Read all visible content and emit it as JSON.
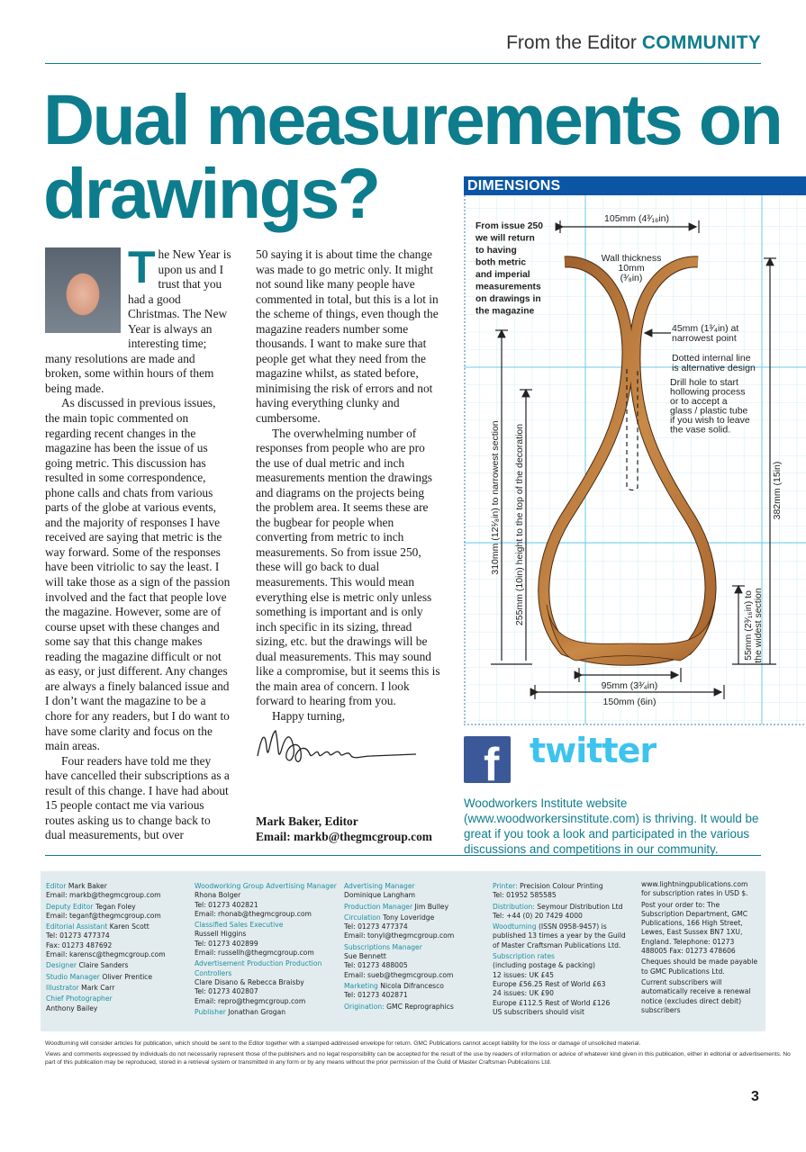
{
  "header": {
    "section": "From the Editor",
    "category": "COMMUNITY"
  },
  "title": "Dual measurements on drawings?",
  "article": {
    "drop_cap": "T",
    "col1": [
      "he New Year is upon us and I trust that you had a good Christmas. The New Year is always an interesting time; many resolutions are made and broken, some within hours of them being made.",
      "As discussed in previous issues, the main topic commented on regarding recent changes in the magazine has been the issue of us going metric. This discussion has resulted in some correspondence, phone calls and chats from various parts of the globe at various events, and the majority of responses I have received are saying that metric is the way forward. Some of the responses have been vitriolic to say the least. I will take those as a sign of the passion involved and the fact that people love the magazine. However, some are of course upset with these changes and some say that this change makes reading the magazine difficult or not as easy, or just different. Any changes are always a finely balanced issue and I don’t want the magazine to be a chore for any readers, but I do want to have some clarity and focus on the main areas.",
      "Four readers have told me they have cancelled their subscriptions as a result of this change. I have had about 15 people contact me via various routes asking us to change back to dual measurements, but over"
    ],
    "col2": [
      "50 saying it is about time the change was made to go metric only. It might not sound like many people have commented in total, but this is a lot in the scheme of things, even though the magazine readers number some thousands. I want to make sure that people get what they need from the magazine whilst, as stated before, minimising the risk of errors and not having everything clunky and cumbersome.",
      "The overwhelming number of responses from people who are pro the use of dual metric and inch measurements mention the drawings and diagrams on the projects being the problem area. It seems these are the bugbear for people when converting from metric to inch measurements. So from issue 250, these will go back to dual measurements. This would mean everything else is metric only unless something is important and is only inch specific in its sizing, thread sizing, etc. but the drawings will be dual measurements. This may sound like a compromise, but it seems this is the main area of concern. I look forward to hearing from you.",
      "Happy turning,"
    ],
    "signature_name": "Mark Baker, Editor",
    "signature_email": "Email: markb@thegmcgroup.com"
  },
  "diagram": {
    "heading": "DIMENSIONS",
    "note": [
      "From issue 250",
      "we will return",
      "to having",
      "both metric",
      "and imperial",
      "measurements",
      "on drawings in",
      "the magazine"
    ],
    "top_width": "105mm (4³⁄₁₆in)",
    "wall": [
      "Wall thickness",
      "10mm",
      "(³⁄₈in)"
    ],
    "narrow": [
      "45mm (1³⁄₄in) at",
      "narrowest point"
    ],
    "dotted": [
      "Dotted internal line",
      "is alternative design"
    ],
    "drill": [
      "Drill hole to start",
      "hollowing process",
      "or to accept a",
      "glass / plastic tube",
      "if you wish to leave",
      "the vase solid."
    ],
    "h310": "310mm (12¹⁄₈in) to narrowest section",
    "h255": "255mm (10in) height to the top of the decoration",
    "h382": "382mm (15in)",
    "h55": [
      "55mm (2³⁄₁₆in) to",
      "the widest section"
    ],
    "base_width": "95mm (3³⁄₄in)",
    "max_width": "150mm (6in)",
    "colors": {
      "grid": "#bfe6f2",
      "grid_major": "#5cc6e6",
      "wood": "#b8783a"
    }
  },
  "social": {
    "facebook_icon": "f",
    "twitter_logo": "twitter",
    "website_text": "Woodworkers Institute website (www.woodworkersinstitute.com) is thriving. It would be great if you took a look and participated in the various discussions and competitions in our community."
  },
  "credits": {
    "c1": [
      {
        "role": "Editor",
        "text": "Mark Baker",
        "extra": [
          "Email: markb@thegmcgroup.com"
        ]
      },
      {
        "role": "Deputy Editor",
        "text": "Tegan Foley",
        "extra": [
          "Email: teganf@thegmcgroup.com"
        ]
      },
      {
        "role": "Editorial Assistant",
        "text": "Karen Scott",
        "extra": [
          "Tel: 01273 477374",
          "Fax: 01273 487692",
          "Email: karensc@thegmcgroup.com"
        ]
      },
      {
        "role": "Designer",
        "text": "Claire Sanders",
        "extra": []
      },
      {
        "role": "Studio Manager",
        "text": "Oliver Prentice",
        "extra": []
      },
      {
        "role": "Illustrator",
        "text": "Mark Carr",
        "extra": []
      },
      {
        "role": "Chief Photographer",
        "text": "",
        "extra": [
          "Anthony Bailey"
        ]
      }
    ],
    "c2": [
      {
        "role": "Woodworking Group Advertising Manager",
        "text": "Rhona Bolger",
        "extra": [
          "Tel: 01273 402821",
          "Email: rhonab@thegmcgroup.com"
        ]
      },
      {
        "role": "Classified Sales Executive",
        "text": "",
        "extra": [
          "Russell Higgins",
          "Tel: 01273 402899",
          "Email: russellh@thegmcgroup.com"
        ]
      },
      {
        "role": "Advertisement Production Production Controllers",
        "text": "",
        "extra": [
          "Clare Disano & Rebecca Braisby",
          "Tel: 01273 402807",
          "Email: repro@thegmcgroup.com"
        ]
      },
      {
        "role": "Publisher",
        "text": "Jonathan Grogan",
        "extra": []
      }
    ],
    "c3": [
      {
        "role": "Advertising Manager",
        "text": "",
        "extra": [
          "Dominique Langham"
        ]
      },
      {
        "role": "Production Manager",
        "text": "Jim Bulley",
        "extra": []
      },
      {
        "role": "Circulation",
        "text": "Tony Loveridge",
        "extra": [
          "Tel: 01273 477374",
          "Email: tonyl@thegmcgroup.com"
        ]
      },
      {
        "role": "Subscriptions Manager",
        "text": "",
        "extra": [
          "Sue Bennett",
          "Tel: 01273 488005",
          "Email: sueb@thegmcgroup.com"
        ]
      },
      {
        "role": "Marketing",
        "text": "Nicola Difrancesco",
        "extra": [
          "Tel: 01273 402871"
        ]
      },
      {
        "role": "Origination:",
        "text": "GMC Reprographics",
        "extra": []
      }
    ],
    "c4": [
      {
        "role": "Printer:",
        "text": "Precision Colour Printing",
        "extra": [
          "Tel: 01952 585585"
        ]
      },
      {
        "role": "Distribution:",
        "text": "Seymour Distribution Ltd   Tel: +44 (0) 20 7429 4000",
        "extra": []
      },
      {
        "role": "Woodturning",
        "text": "(ISSN 0958-9457) is published 13 times a year by the Guild of Master Craftsman Publications Ltd.",
        "extra": []
      },
      {
        "role": "Subscription rates",
        "text": "",
        "extra": [
          "(including postage & packing)",
          "12 issues:  UK £45",
          "Europe £56.25 Rest of World £63",
          "24 issues: UK £90",
          "Europe £112.5 Rest of World £126",
          "US subscribers should visit"
        ]
      }
    ],
    "c5": [
      "www.lightningpublications.com for subscription rates in USD $.",
      "Post your order to: The Subscription Department, GMC Publications, 166 High Street, Lewes, East Sussex BN7 1XU, England. Telephone: 01273 488005 Fax: 01273 478606",
      "Cheques should be made payable to GMC Publications Ltd.",
      "Current subscribers will automatically receive a renewal notice (excludes direct debit) subscribers"
    ]
  },
  "footer": [
    "Woodturning will consider articles for publication, which should be sent to the Editor together with a stamped-addressed envelope for return. GMC Publications cannot accept liability for the loss or damage of unsolicited material.",
    "Views and comments expressed by individuals do not necessarily represent those of the publishers and no legal responsibility can be accepted for the result of the use by readers of information or advice of whatever kind given in this publication, either in editorial or advertisements. No part of this publication may be reproduced, stored in a retrieval system or transmitted in any form or by any means without the prior permission of the Guild of Master Craftsman Publications Ltd."
  ],
  "page_number": "3"
}
